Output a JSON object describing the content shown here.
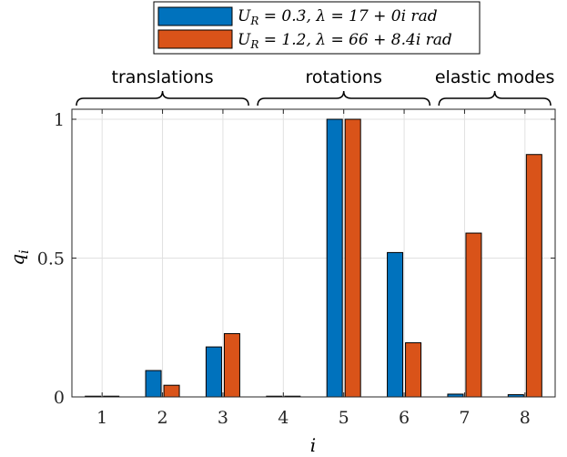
{
  "chart_data": {
    "type": "bar",
    "categories": [
      "1",
      "2",
      "3",
      "4",
      "5",
      "6",
      "7",
      "8"
    ],
    "series": [
      {
        "name": "U_R = 0.3, λ = 17 + 0i rad",
        "color": "#0072BD",
        "values": [
          0.0,
          0.095,
          0.18,
          0.0,
          1.0,
          0.52,
          0.01,
          0.008
        ]
      },
      {
        "name": "U_R = 1.2, λ = 66 + 8.4i rad",
        "color": "#D95319",
        "values": [
          0.0,
          0.042,
          0.228,
          0.0,
          1.0,
          0.195,
          0.59,
          0.873
        ]
      }
    ],
    "xlabel": "i",
    "ylabel": "q_i",
    "ylim": [
      0,
      1.05
    ],
    "yticks": [
      0,
      0.5,
      1
    ],
    "ytick_labels": [
      "0",
      "0.5",
      "1"
    ],
    "grid": true,
    "legend_position": "top-center",
    "groups": [
      {
        "label": "translations",
        "from": 1,
        "to": 3
      },
      {
        "label": "rotations",
        "from": 4,
        "to": 6
      },
      {
        "label": "elastic modes",
        "from": 7,
        "to": 8
      }
    ]
  }
}
